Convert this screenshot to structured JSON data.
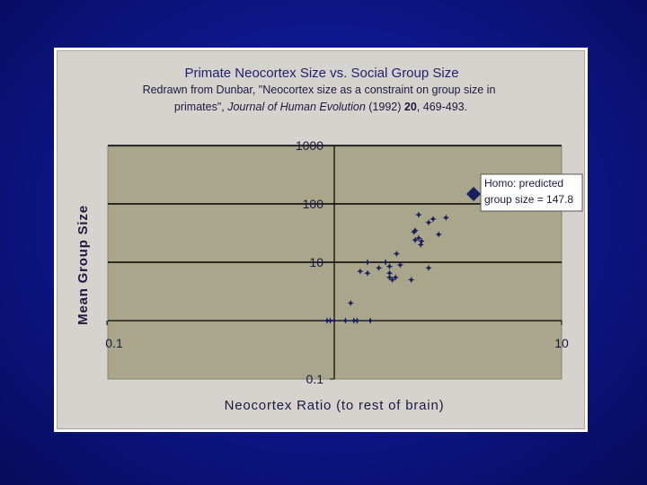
{
  "colors": {
    "background": "#0d1890",
    "plot_area": "#a9a68b",
    "marker": "#1a1f5e",
    "gridline": "#000000"
  },
  "chart_data": {
    "type": "scatter",
    "title": "Primate Neocortex Size vs. Social Group Size",
    "subtitle_line1": "Redrawn from Dunbar, \"Neocortex size as a constraint on group size in",
    "subtitle_line2_a": "primates\", ",
    "subtitle_line2_journal": "Journal of Human Evolution",
    "subtitle_line2_b": " (1992) ",
    "subtitle_line2_volume": "20",
    "subtitle_line2_c": ", 469-493.",
    "xlabel": "Neocortex Ratio (to rest of brain)",
    "ylabel": "Mean Group Size",
    "x_scale": "log",
    "y_scale": "log",
    "xlim": [
      0.1,
      10
    ],
    "ylim": [
      0.1,
      1000
    ],
    "x_ticks": [
      "0.1",
      "10"
    ],
    "y_ticks": [
      "1000",
      "100",
      "10",
      "0.1"
    ],
    "grid": true,
    "annotation_line1": "Homo:  predicted",
    "annotation_line2": "group size = 147.8",
    "homo_point": {
      "x": 4.1,
      "y": 147.8
    },
    "points": [
      {
        "x": 0.93,
        "y": 1
      },
      {
        "x": 0.96,
        "y": 1
      },
      {
        "x": 1.0,
        "y": 1
      },
      {
        "x": 1.12,
        "y": 1
      },
      {
        "x": 1.22,
        "y": 1
      },
      {
        "x": 1.26,
        "y": 1
      },
      {
        "x": 1.44,
        "y": 1
      },
      {
        "x": 1.18,
        "y": 2
      },
      {
        "x": 1.3,
        "y": 7
      },
      {
        "x": 1.4,
        "y": 6.5
      },
      {
        "x": 1.4,
        "y": 10
      },
      {
        "x": 1.57,
        "y": 8
      },
      {
        "x": 1.68,
        "y": 10
      },
      {
        "x": 1.75,
        "y": 8.5
      },
      {
        "x": 1.75,
        "y": 6.5
      },
      {
        "x": 1.75,
        "y": 5.5
      },
      {
        "x": 1.8,
        "y": 5
      },
      {
        "x": 1.86,
        "y": 5.5
      },
      {
        "x": 1.88,
        "y": 14
      },
      {
        "x": 1.95,
        "y": 9
      },
      {
        "x": 2.18,
        "y": 5
      },
      {
        "x": 2.24,
        "y": 33
      },
      {
        "x": 2.27,
        "y": 35
      },
      {
        "x": 2.27,
        "y": 24
      },
      {
        "x": 2.35,
        "y": 26
      },
      {
        "x": 2.4,
        "y": 20
      },
      {
        "x": 2.42,
        "y": 23
      },
      {
        "x": 2.35,
        "y": 65
      },
      {
        "x": 2.6,
        "y": 48
      },
      {
        "x": 2.6,
        "y": 8
      },
      {
        "x": 2.72,
        "y": 55
      },
      {
        "x": 2.88,
        "y": 30
      },
      {
        "x": 3.1,
        "y": 58
      }
    ]
  }
}
